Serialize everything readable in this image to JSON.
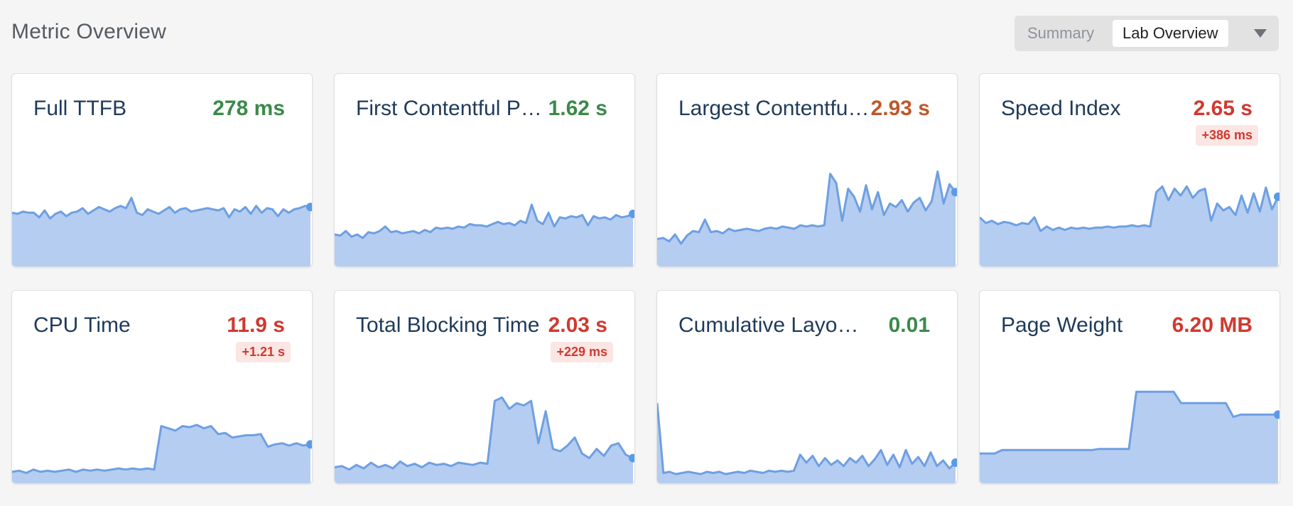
{
  "header": {
    "title": "Metric Overview",
    "tabs": [
      {
        "label": "Summary",
        "active": false
      },
      {
        "label": "Lab Overview",
        "active": true
      }
    ],
    "dropdown_icon": "chevron-down-icon"
  },
  "colors": {
    "good": "#3a8a4a",
    "needs_improvement": "#c0582a",
    "poor": "#d0392f",
    "chart_fill": "#b5cdf0",
    "chart_line": "#6e9fe2",
    "chart_dot": "#5a9be6"
  },
  "cards": [
    {
      "name": "Full TTFB",
      "value": "278 ms",
      "delta": null,
      "status": "good",
      "trend": [
        0.47,
        0.46,
        0.48,
        0.47,
        0.47,
        0.43,
        0.49,
        0.42,
        0.46,
        0.48,
        0.44,
        0.47,
        0.48,
        0.51,
        0.46,
        0.49,
        0.52,
        0.5,
        0.48,
        0.51,
        0.53,
        0.51,
        0.6,
        0.47,
        0.45,
        0.5,
        0.48,
        0.46,
        0.49,
        0.52,
        0.47,
        0.5,
        0.51,
        0.48,
        0.49,
        0.5,
        0.51,
        0.5,
        0.49,
        0.51,
        0.43,
        0.5,
        0.48,
        0.52,
        0.46,
        0.53,
        0.47,
        0.51,
        0.5,
        0.44,
        0.5,
        0.47,
        0.5,
        0.51,
        0.53,
        0.52
      ]
    },
    {
      "name": "First Contentful Paint",
      "value": "1.62 s",
      "delta": null,
      "status": "good",
      "trend": [
        0.28,
        0.27,
        0.31,
        0.26,
        0.28,
        0.25,
        0.3,
        0.29,
        0.31,
        0.35,
        0.3,
        0.31,
        0.29,
        0.3,
        0.31,
        0.29,
        0.32,
        0.3,
        0.34,
        0.33,
        0.34,
        0.33,
        0.35,
        0.34,
        0.37,
        0.36,
        0.36,
        0.35,
        0.37,
        0.39,
        0.37,
        0.38,
        0.36,
        0.4,
        0.38,
        0.54,
        0.4,
        0.37,
        0.47,
        0.35,
        0.43,
        0.42,
        0.44,
        0.43,
        0.45,
        0.36,
        0.44,
        0.42,
        0.43,
        0.41,
        0.45,
        0.43,
        0.44,
        0.46
      ]
    },
    {
      "name": "Largest Contentful Paint",
      "value": "2.93 s",
      "delta": null,
      "status": "needs_improvement",
      "trend": [
        0.24,
        0.25,
        0.22,
        0.28,
        0.2,
        0.27,
        0.31,
        0.3,
        0.41,
        0.3,
        0.31,
        0.29,
        0.33,
        0.31,
        0.32,
        0.33,
        0.32,
        0.31,
        0.33,
        0.34,
        0.33,
        0.35,
        0.34,
        0.33,
        0.36,
        0.35,
        0.36,
        0.35,
        0.36,
        0.81,
        0.73,
        0.4,
        0.68,
        0.61,
        0.48,
        0.71,
        0.5,
        0.65,
        0.45,
        0.55,
        0.52,
        0.58,
        0.48,
        0.56,
        0.6,
        0.49,
        0.57,
        0.83,
        0.55,
        0.72,
        0.65
      ]
    },
    {
      "name": "Speed Index",
      "value": "2.65 s",
      "delta": "+386 ms",
      "status": "poor",
      "trend": [
        0.43,
        0.38,
        0.4,
        0.37,
        0.39,
        0.38,
        0.36,
        0.38,
        0.37,
        0.43,
        0.31,
        0.35,
        0.32,
        0.34,
        0.32,
        0.34,
        0.33,
        0.34,
        0.33,
        0.34,
        0.34,
        0.35,
        0.34,
        0.35,
        0.35,
        0.36,
        0.35,
        0.36,
        0.35,
        0.65,
        0.7,
        0.58,
        0.68,
        0.62,
        0.7,
        0.6,
        0.66,
        0.68,
        0.4,
        0.55,
        0.49,
        0.52,
        0.45,
        0.62,
        0.47,
        0.64,
        0.48,
        0.69,
        0.5,
        0.61
      ]
    },
    {
      "name": "CPU Time",
      "value": "11.9 s",
      "delta": "+1.21 s",
      "status": "poor",
      "trend": [
        0.1,
        0.11,
        0.09,
        0.12,
        0.1,
        0.11,
        0.1,
        0.11,
        0.12,
        0.1,
        0.12,
        0.11,
        0.12,
        0.11,
        0.12,
        0.13,
        0.12,
        0.13,
        0.12,
        0.13,
        0.12,
        0.5,
        0.48,
        0.46,
        0.5,
        0.49,
        0.51,
        0.48,
        0.5,
        0.43,
        0.44,
        0.4,
        0.41,
        0.42,
        0.42,
        0.43,
        0.32,
        0.34,
        0.35,
        0.33,
        0.35,
        0.33,
        0.34
      ]
    },
    {
      "name": "Total Blocking Time",
      "value": "2.03 s",
      "delta": "+229 ms",
      "status": "poor",
      "trend": [
        0.14,
        0.15,
        0.12,
        0.16,
        0.13,
        0.18,
        0.14,
        0.16,
        0.13,
        0.19,
        0.15,
        0.17,
        0.14,
        0.18,
        0.16,
        0.17,
        0.15,
        0.18,
        0.17,
        0.16,
        0.18,
        0.17,
        0.72,
        0.75,
        0.65,
        0.7,
        0.68,
        0.72,
        0.35,
        0.63,
        0.3,
        0.28,
        0.33,
        0.4,
        0.26,
        0.22,
        0.3,
        0.24,
        0.33,
        0.35,
        0.25,
        0.22
      ]
    },
    {
      "name": "Cumulative Layout Shift",
      "value": "0.01",
      "delta": null,
      "status": "good",
      "trend": [
        0.7,
        0.09,
        0.1,
        0.08,
        0.09,
        0.1,
        0.09,
        0.08,
        0.1,
        0.09,
        0.1,
        0.08,
        0.09,
        0.1,
        0.09,
        0.11,
        0.1,
        0.09,
        0.11,
        0.1,
        0.11,
        0.1,
        0.11,
        0.25,
        0.18,
        0.24,
        0.15,
        0.22,
        0.16,
        0.2,
        0.15,
        0.22,
        0.18,
        0.24,
        0.15,
        0.21,
        0.29,
        0.16,
        0.25,
        0.14,
        0.29,
        0.17,
        0.23,
        0.15,
        0.27,
        0.15,
        0.2,
        0.13,
        0.18
      ]
    },
    {
      "name": "Page Weight",
      "value": "6.20 MB",
      "delta": null,
      "status": "poor",
      "trend": [
        0.26,
        0.26,
        0.26,
        0.29,
        0.29,
        0.29,
        0.29,
        0.29,
        0.29,
        0.29,
        0.29,
        0.29,
        0.29,
        0.29,
        0.29,
        0.29,
        0.3,
        0.3,
        0.3,
        0.3,
        0.3,
        0.8,
        0.8,
        0.8,
        0.8,
        0.8,
        0.8,
        0.7,
        0.7,
        0.7,
        0.7,
        0.7,
        0.7,
        0.7,
        0.58,
        0.6,
        0.6,
        0.6,
        0.6,
        0.6,
        0.6
      ]
    }
  ]
}
